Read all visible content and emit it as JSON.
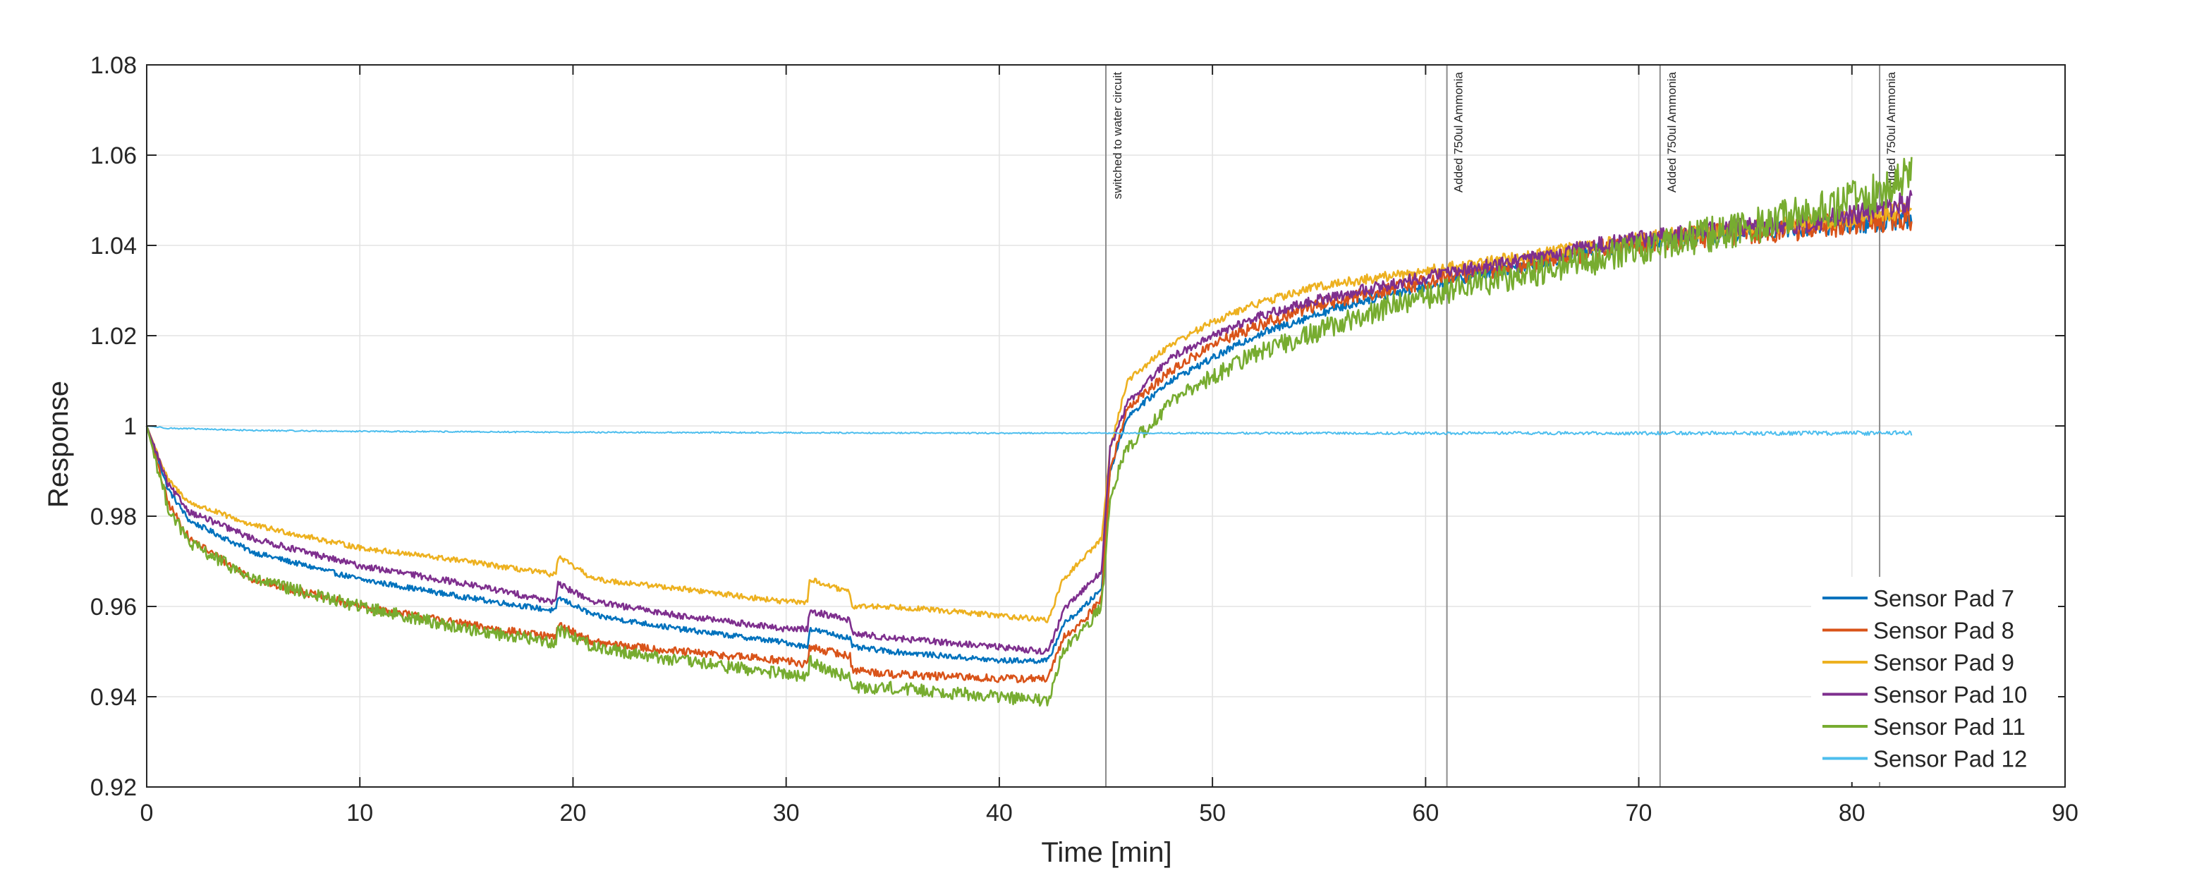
{
  "chart_data": {
    "type": "line",
    "title": "",
    "xlabel": "Time [min]",
    "ylabel": "Response",
    "xlim": [
      0,
      90
    ],
    "ylim": [
      0.92,
      1.08
    ],
    "x_ticks": [
      0,
      10,
      20,
      30,
      40,
      50,
      60,
      70,
      80,
      90
    ],
    "x_tick_labels": [
      "0",
      "10",
      "20",
      "30",
      "40",
      "50",
      "60",
      "70",
      "80",
      "90"
    ],
    "y_ticks": [
      0.92,
      0.94,
      0.96,
      0.98,
      1.0,
      1.02,
      1.04,
      1.06,
      1.08
    ],
    "y_tick_labels": [
      "0.92",
      "0.94",
      "0.96",
      "0.98",
      "1",
      "1.02",
      "1.04",
      "1.06",
      "1.08"
    ],
    "grid": true,
    "legend_position": "bottom-right",
    "annotations": [
      {
        "x": 45,
        "text": "switched to water circuit"
      },
      {
        "x": 61,
        "text": "Added 750ul Ammonia"
      },
      {
        "x": 71,
        "text": "Added 750ul Ammonia"
      },
      {
        "x": 81.3,
        "text": "Added 750ul Ammonia"
      }
    ],
    "series": [
      {
        "name": "Sensor Pad 7",
        "color": "#0072BD",
        "noise": 0.0006,
        "x": [
          0,
          1,
          2,
          5,
          10,
          15,
          19.2,
          19.3,
          21,
          25,
          30,
          31,
          31.1,
          33,
          33.1,
          35,
          40,
          42.3,
          43,
          44,
          44.8,
          45.2,
          46,
          48,
          50,
          52,
          55,
          58,
          61,
          65,
          68,
          71,
          75,
          78,
          81.3,
          82.8
        ],
        "y": [
          1.0,
          0.986,
          0.979,
          0.972,
          0.966,
          0.962,
          0.959,
          0.962,
          0.958,
          0.955,
          0.952,
          0.951,
          0.955,
          0.953,
          0.951,
          0.95,
          0.948,
          0.948,
          0.956,
          0.96,
          0.964,
          0.99,
          1.002,
          1.01,
          1.015,
          1.02,
          1.025,
          1.029,
          1.032,
          1.036,
          1.039,
          1.041,
          1.043,
          1.044,
          1.045,
          1.046
        ]
      },
      {
        "name": "Sensor Pad 8",
        "color": "#D95319",
        "noise": 0.0009,
        "x": [
          0,
          1,
          2,
          5,
          10,
          15,
          19.2,
          19.3,
          21,
          25,
          30,
          31,
          31.1,
          33,
          33.1,
          35,
          40,
          42.3,
          43,
          44,
          44.8,
          45.2,
          46,
          48,
          50,
          52,
          55,
          58,
          61,
          65,
          68,
          71,
          75,
          78,
          81.3,
          82.8
        ],
        "y": [
          1.0,
          0.983,
          0.975,
          0.966,
          0.96,
          0.956,
          0.953,
          0.956,
          0.952,
          0.95,
          0.948,
          0.947,
          0.951,
          0.949,
          0.946,
          0.945,
          0.944,
          0.944,
          0.953,
          0.957,
          0.962,
          0.99,
          1.004,
          1.012,
          1.018,
          1.022,
          1.027,
          1.03,
          1.033,
          1.036,
          1.039,
          1.041,
          1.043,
          1.044,
          1.046,
          1.046
        ]
      },
      {
        "name": "Sensor Pad 9",
        "color": "#EDB120",
        "noise": 0.0006,
        "x": [
          0,
          1,
          2,
          5,
          10,
          15,
          19.2,
          19.3,
          21,
          25,
          30,
          31,
          31.1,
          33,
          33.1,
          35,
          40,
          42.3,
          43,
          44,
          44.8,
          45.2,
          46,
          48,
          50,
          52,
          55,
          58,
          61,
          65,
          68,
          71,
          75,
          78,
          81.3,
          82.8
        ],
        "y": [
          1.0,
          0.988,
          0.983,
          0.978,
          0.973,
          0.97,
          0.967,
          0.971,
          0.966,
          0.964,
          0.961,
          0.961,
          0.966,
          0.963,
          0.96,
          0.96,
          0.958,
          0.957,
          0.966,
          0.971,
          0.975,
          0.995,
          1.01,
          1.018,
          1.023,
          1.027,
          1.031,
          1.033,
          1.035,
          1.038,
          1.04,
          1.042,
          1.044,
          1.045,
          1.047,
          1.048
        ]
      },
      {
        "name": "Sensor Pad 10",
        "color": "#7E2F8E",
        "noise": 0.0007,
        "x": [
          0,
          1,
          2,
          5,
          10,
          15,
          19.2,
          19.3,
          21,
          25,
          30,
          31,
          31.1,
          33,
          33.1,
          35,
          40,
          42.3,
          43,
          44,
          44.8,
          45.2,
          46,
          48,
          50,
          52,
          55,
          58,
          61,
          65,
          68,
          71,
          75,
          78,
          81.3,
          82.8
        ],
        "y": [
          1.0,
          0.987,
          0.981,
          0.975,
          0.969,
          0.965,
          0.961,
          0.965,
          0.961,
          0.958,
          0.955,
          0.955,
          0.959,
          0.957,
          0.954,
          0.953,
          0.951,
          0.95,
          0.959,
          0.964,
          0.968,
          0.995,
          1.005,
          1.015,
          1.02,
          1.024,
          1.028,
          1.031,
          1.034,
          1.037,
          1.04,
          1.042,
          1.044,
          1.045,
          1.048,
          1.05
        ]
      },
      {
        "name": "Sensor Pad 11",
        "color": "#77AC30",
        "noise": 0.0014,
        "x": [
          0,
          1,
          2,
          5,
          10,
          15,
          19.2,
          19.3,
          21,
          25,
          30,
          31,
          31.1,
          33,
          33.1,
          35,
          40,
          42.3,
          43,
          44,
          44.8,
          45.2,
          46,
          48,
          50,
          52,
          55,
          58,
          61,
          65,
          68,
          71,
          75,
          78,
          81.3,
          82.8
        ],
        "y": [
          1.0,
          0.982,
          0.974,
          0.966,
          0.96,
          0.955,
          0.952,
          0.955,
          0.951,
          0.948,
          0.945,
          0.944,
          0.948,
          0.944,
          0.942,
          0.942,
          0.94,
          0.939,
          0.95,
          0.955,
          0.96,
          0.985,
          0.995,
          1.005,
          1.011,
          1.016,
          1.021,
          1.026,
          1.03,
          1.034,
          1.037,
          1.04,
          1.044,
          1.047,
          1.052,
          1.056
        ]
      },
      {
        "name": "Sensor Pad 12",
        "color": "#4DBEEE",
        "noise": 0.00015,
        "x": [
          0,
          1,
          5,
          10,
          20,
          30,
          40,
          45,
          50,
          60,
          70,
          80,
          82.8
        ],
        "y": [
          1.0,
          0.9995,
          0.999,
          0.9988,
          0.9986,
          0.9985,
          0.9984,
          0.9984,
          0.9984,
          0.9984,
          0.9984,
          0.9984,
          0.9984
        ]
      }
    ]
  }
}
